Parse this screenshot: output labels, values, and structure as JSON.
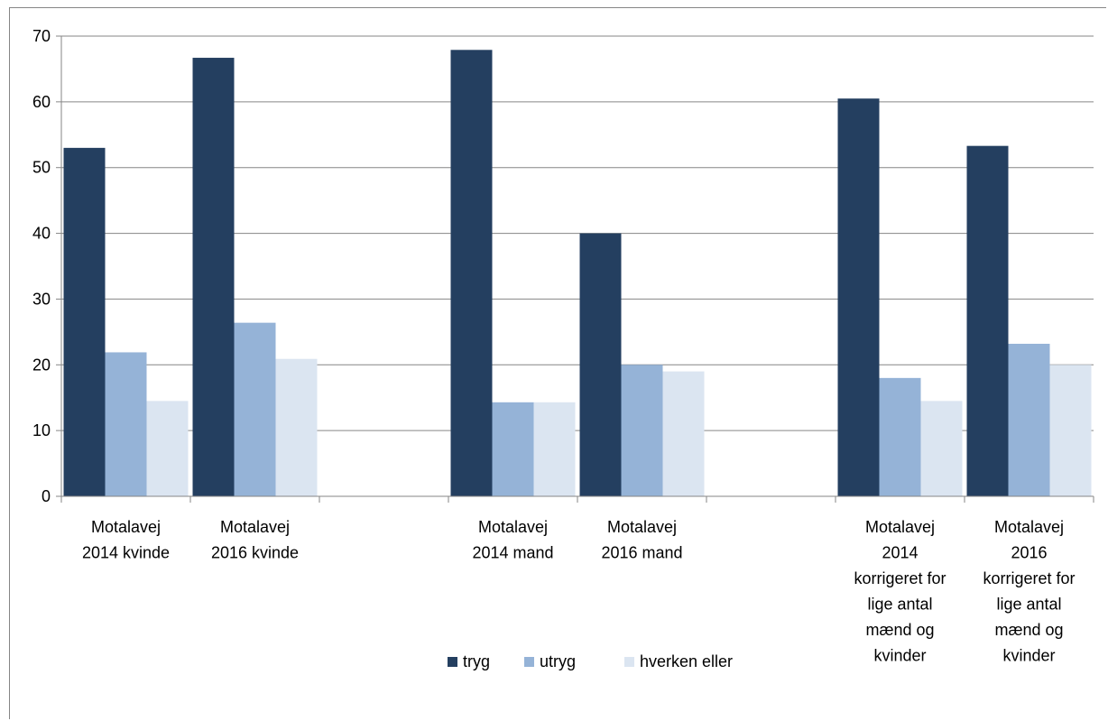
{
  "caption": "",
  "chart_data": {
    "type": "bar",
    "categories": [
      [
        "Motalavej",
        "2014 kvinde"
      ],
      [
        "Motalavej",
        "2016 kvinde"
      ],
      [],
      [
        "Motalavej",
        "2014 mand"
      ],
      [
        "Motalavej",
        "2016 mand"
      ],
      [],
      [
        "Motalavej",
        "2014",
        "korrigeret for",
        "lige antal",
        "mænd og",
        "kvinder"
      ],
      [
        "Motalavej",
        "2016",
        "korrigeret for",
        "lige antal",
        "mænd og",
        "kvinder"
      ]
    ],
    "series": [
      {
        "name": "tryg",
        "color": "#243f60",
        "values": [
          53,
          66.7,
          null,
          67.9,
          40,
          null,
          60.5,
          53.3
        ]
      },
      {
        "name": "utryg",
        "color": "#95b3d7",
        "values": [
          21.9,
          26.4,
          null,
          14.3,
          20,
          null,
          18,
          23.2
        ]
      },
      {
        "name": "hverken eller",
        "color": "#dbe5f1",
        "values": [
          14.5,
          20.9,
          null,
          14.3,
          19,
          null,
          14.5,
          20
        ]
      }
    ],
    "yticks": [
      0,
      10,
      20,
      30,
      40,
      50,
      60,
      70
    ],
    "ylim": [
      0,
      70
    ],
    "grid": true,
    "legend_position": "bottom"
  }
}
